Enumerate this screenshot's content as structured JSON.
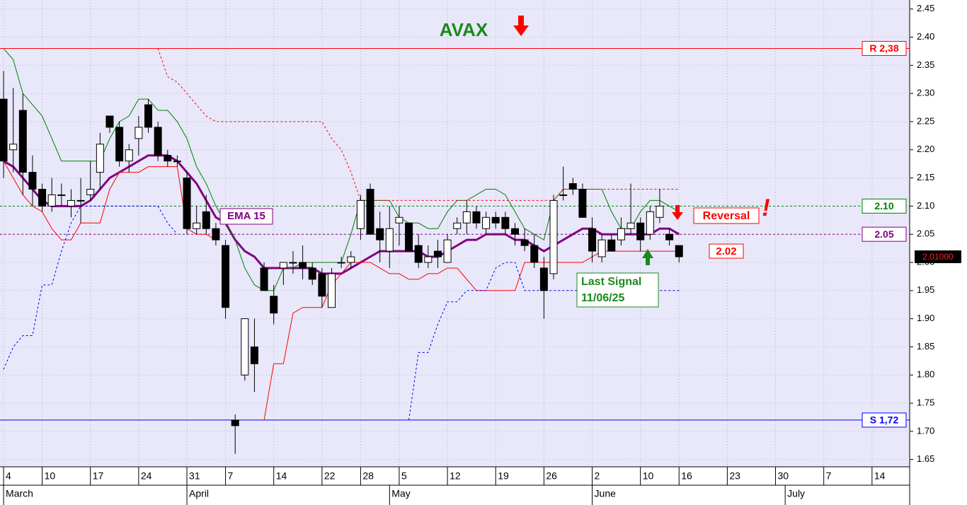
{
  "chart_data": {
    "type": "candlestick",
    "title": "AVAX",
    "x": [
      0,
      1,
      2,
      3,
      4,
      5,
      6,
      7,
      8,
      9,
      10,
      11,
      12,
      13,
      14,
      15,
      16,
      17,
      18,
      19,
      20,
      21,
      22,
      23,
      24,
      25,
      26,
      27,
      28,
      29,
      30,
      31,
      32,
      33,
      34,
      35,
      36,
      37,
      38,
      39,
      40,
      41,
      42,
      43,
      44,
      45,
      46,
      47,
      48,
      49,
      50,
      51,
      52,
      53,
      54,
      55,
      56,
      57,
      58,
      59,
      60,
      61,
      62,
      63,
      64,
      65,
      66,
      67,
      68,
      69,
      70
    ],
    "open": [
      2.29,
      2.2,
      2.27,
      2.16,
      2.13,
      2.1,
      2.12,
      2.1,
      2.11,
      2.12,
      2.16,
      2.26,
      2.24,
      2.18,
      2.22,
      2.28,
      2.24,
      2.19,
      2.18,
      2.15,
      2.06,
      2.09,
      2.06,
      2.03,
      1.72,
      1.8,
      1.85,
      1.99,
      1.94,
      1.99,
      2.0,
      2.0,
      1.99,
      1.98,
      1.92,
      2.0,
      2.0,
      2.06,
      2.13,
      2.06,
      2.02,
      2.07,
      2.07,
      2.03,
      2.0,
      2.02,
      2.0,
      2.06,
      2.07,
      2.09,
      2.06,
      2.08,
      2.08,
      2.06,
      2.04,
      2.03,
      1.99,
      1.98,
      2.12,
      2.14,
      2.13,
      2.06,
      2.01,
      2.04,
      2.04,
      2.06,
      2.07,
      2.05,
      2.08,
      2.05,
      2.03
    ],
    "high": [
      2.34,
      2.31,
      2.3,
      2.19,
      2.14,
      2.15,
      2.14,
      2.13,
      2.15,
      2.18,
      2.23,
      2.26,
      2.25,
      2.21,
      2.26,
      2.29,
      2.25,
      2.2,
      2.19,
      2.16,
      2.1,
      2.12,
      2.07,
      2.04,
      1.73,
      1.9,
      1.9,
      2.0,
      1.96,
      2.0,
      2.02,
      2.03,
      2.0,
      1.99,
      1.99,
      2.01,
      2.02,
      2.12,
      2.14,
      2.09,
      2.1,
      2.1,
      2.07,
      2.05,
      2.03,
      2.04,
      2.05,
      2.08,
      2.11,
      2.1,
      2.09,
      2.09,
      2.09,
      2.07,
      2.06,
      2.05,
      2.01,
      2.12,
      2.17,
      2.15,
      2.14,
      2.08,
      2.05,
      2.05,
      2.08,
      2.14,
      2.08,
      2.1,
      2.13,
      2.06,
      2.03
    ],
    "low": [
      2.15,
      2.16,
      2.12,
      2.1,
      2.09,
      2.09,
      2.1,
      2.08,
      2.07,
      2.11,
      2.13,
      2.23,
      2.17,
      2.16,
      2.19,
      2.23,
      2.18,
      2.17,
      2.17,
      2.05,
      2.05,
      2.05,
      2.03,
      1.9,
      1.66,
      1.79,
      1.77,
      1.95,
      1.89,
      1.96,
      1.98,
      1.97,
      1.96,
      1.92,
      1.92,
      1.99,
      1.99,
      2.04,
      2.05,
      2.0,
      1.99,
      2.03,
      2.02,
      1.99,
      1.99,
      1.99,
      2.0,
      2.05,
      2.05,
      2.06,
      2.05,
      2.06,
      2.05,
      2.03,
      2.02,
      1.99,
      1.9,
      1.97,
      2.11,
      2.12,
      2.08,
      2.0,
      2.0,
      2.02,
      2.03,
      2.05,
      2.02,
      2.04,
      2.07,
      2.03,
      2.0
    ],
    "close": [
      2.18,
      2.21,
      2.16,
      2.13,
      2.1,
      2.12,
      2.12,
      2.11,
      2.11,
      2.13,
      2.21,
      2.24,
      2.18,
      2.2,
      2.24,
      2.24,
      2.19,
      2.18,
      2.18,
      2.06,
      2.07,
      2.06,
      2.04,
      1.92,
      1.71,
      1.9,
      1.82,
      1.95,
      1.91,
      2.0,
      2.0,
      1.99,
      1.97,
      1.94,
      1.98,
      2.0,
      2.01,
      2.11,
      2.05,
      2.04,
      2.06,
      2.08,
      2.02,
      2.0,
      2.01,
      2.01,
      2.04,
      2.07,
      2.09,
      2.07,
      2.08,
      2.07,
      2.06,
      2.05,
      2.03,
      2.0,
      1.95,
      2.11,
      2.12,
      2.13,
      2.08,
      2.02,
      2.04,
      2.02,
      2.06,
      2.07,
      2.04,
      2.09,
      2.1,
      2.04,
      2.01
    ],
    "overlays": [
      {
        "name": "EMA 15",
        "color": "#800080",
        "width": 3,
        "dash": "none",
        "values": [
          2.18,
          2.17,
          2.15,
          2.13,
          2.11,
          2.1,
          2.1,
          2.1,
          2.1,
          2.11,
          2.13,
          2.15,
          2.16,
          2.17,
          2.18,
          2.19,
          2.19,
          2.19,
          2.18,
          2.16,
          2.14,
          2.11,
          2.08,
          2.07,
          2.04,
          2.02,
          2.01,
          1.99,
          1.99,
          1.99,
          1.99,
          1.99,
          1.99,
          1.98,
          1.98,
          1.98,
          1.99,
          2.0,
          2.01,
          2.02,
          2.02,
          2.02,
          2.02,
          2.02,
          2.01,
          2.01,
          2.02,
          2.03,
          2.04,
          2.04,
          2.05,
          2.05,
          2.05,
          2.04,
          2.04,
          2.03,
          2.02,
          2.03,
          2.04,
          2.05,
          2.06,
          2.06,
          2.05,
          2.05,
          2.05,
          2.05,
          2.05,
          2.05,
          2.06,
          2.06,
          2.05
        ]
      },
      {
        "color": "#008000",
        "width": 1,
        "dash": "none",
        "values": [
          2.38,
          2.36,
          2.3,
          2.28,
          2.26,
          2.22,
          2.18,
          2.18,
          2.18,
          2.18,
          2.18,
          2.22,
          2.25,
          2.26,
          2.29,
          2.29,
          2.27,
          2.27,
          2.25,
          2.22,
          2.17,
          2.14,
          2.1,
          2.07,
          2.04,
          1.99,
          1.96,
          1.95,
          1.95,
          1.99,
          1.99,
          2.0,
          2.0,
          2.0,
          2.0,
          2.0,
          2.05,
          2.11,
          2.11,
          2.11,
          2.11,
          2.08,
          2.07,
          2.07,
          2.06,
          2.06,
          2.09,
          2.11,
          2.11,
          2.12,
          2.13,
          2.13,
          2.12,
          2.09,
          2.06,
          2.05,
          2.04,
          2.11,
          2.13,
          2.13,
          2.13,
          2.13,
          2.13,
          2.09,
          2.06,
          2.06,
          2.09,
          2.11,
          2.11,
          2.1,
          2.09
        ]
      },
      {
        "color": "#ff0000",
        "width": 1,
        "dash": "none",
        "values": [
          2.18,
          2.15,
          2.12,
          2.1,
          2.09,
          2.06,
          2.04,
          2.04,
          2.07,
          2.07,
          2.07,
          2.13,
          2.16,
          2.16,
          2.16,
          2.17,
          2.17,
          2.17,
          2.17,
          2.06,
          2.05,
          2.05,
          2.04,
          null,
          null,
          null,
          null,
          1.72,
          1.82,
          1.82,
          1.91,
          1.92,
          1.92,
          1.92,
          1.96,
          1.98,
          2.0,
          2.0,
          2.0,
          1.99,
          1.98,
          1.98,
          1.97,
          1.97,
          1.98,
          1.98,
          1.99,
          1.99,
          1.97,
          1.95,
          1.95,
          1.95,
          1.95,
          1.95,
          2.0,
          2.0,
          2.0,
          2.0,
          2.0,
          2.0,
          2.0,
          2.01,
          2.02,
          2.02,
          2.02,
          2.02,
          2.02,
          2.02,
          2.02,
          2.02,
          2.02
        ]
      },
      {
        "color": "#ff0000",
        "width": 1,
        "dash": "3,3",
        "values": [
          null,
          null,
          null,
          null,
          null,
          null,
          null,
          null,
          null,
          null,
          null,
          null,
          null,
          null,
          null,
          null,
          2.38,
          2.33,
          2.32,
          2.3,
          2.28,
          2.26,
          2.25,
          2.25,
          2.25,
          2.25,
          2.25,
          2.25,
          2.25,
          2.25,
          2.25,
          2.25,
          2.25,
          2.25,
          2.22,
          2.2,
          2.16,
          2.11,
          2.11,
          2.11,
          2.11,
          2.11,
          2.11,
          2.11,
          2.11,
          2.11,
          2.11,
          2.11,
          2.11,
          2.11,
          2.11,
          2.11,
          2.11,
          2.11,
          2.11,
          2.11,
          2.11,
          2.11,
          2.13,
          2.13,
          2.13,
          2.13,
          2.13,
          2.13,
          2.13,
          2.13,
          2.13,
          2.13,
          2.13,
          2.13,
          2.13
        ]
      },
      {
        "color": "#0000ff",
        "width": 1,
        "dash": "3,3",
        "values": [
          1.81,
          1.85,
          1.87,
          1.87,
          1.96,
          1.96,
          2.02,
          2.07,
          2.1,
          2.1,
          2.1,
          2.1,
          2.1,
          2.1,
          2.1,
          2.1,
          2.1,
          2.07,
          2.05,
          null,
          null,
          null,
          null,
          null,
          null,
          null,
          null,
          null,
          null,
          null,
          null,
          null,
          null,
          null,
          null,
          null,
          null,
          null,
          null,
          null,
          null,
          null,
          1.72,
          1.84,
          1.84,
          1.89,
          1.93,
          1.93,
          1.95,
          1.95,
          1.95,
          1.99,
          2.0,
          2.0,
          1.95,
          1.95,
          1.95,
          1.95,
          1.95,
          1.95,
          1.95,
          1.95,
          1.95,
          1.95,
          1.95,
          1.95,
          1.95,
          1.95,
          1.95,
          1.95,
          1.95
        ]
      }
    ],
    "levels": [
      {
        "label": "R 2,38",
        "value": 2.38,
        "color": "#ff0000",
        "dash": "none"
      },
      {
        "label": "S 1,72",
        "value": 1.72,
        "color": "#0000ff",
        "dash": "none"
      },
      {
        "label": "2.10",
        "value": 2.1,
        "color": "#008000",
        "dash": "3,3"
      },
      {
        "label": "2.05",
        "value": 2.05,
        "color": "#800080",
        "dash": "3,3"
      }
    ],
    "last_price": {
      "value": 2.01,
      "label": "2.01000"
    },
    "annotations": {
      "reversal": "Reversal",
      "exclamation": "!",
      "last_signal": "Last Signal",
      "signal_date": "11/06/25",
      "stop": {
        "value": 2.02,
        "label": "2.02"
      }
    },
    "xlim": [
      -0.37,
      93.9
    ],
    "ylim": [
      1.637,
      2.466
    ],
    "yticks": [
      2.45,
      {
        "value": 2.4,
        "label": "2.40"
      },
      2.35,
      {
        "value": 2.3,
        "label": "2.30"
      },
      2.25,
      {
        "value": 2.2,
        "label": "2.20"
      },
      2.15,
      {
        "value": 2.1,
        "label": "2.10"
      },
      2.05,
      {
        "value": 2,
        "label": "2.00"
      },
      1.95,
      {
        "value": 1.9,
        "label": "1.90"
      },
      1.85,
      {
        "value": 1.8,
        "label": "1.80"
      },
      1.75,
      {
        "value": 1.7,
        "label": "1.70"
      },
      1.65
    ],
    "xticks": [
      {
        "value": 0,
        "label": "4"
      },
      {
        "value": 4,
        "label": "10"
      },
      {
        "value": 9,
        "label": "17"
      },
      {
        "value": 14,
        "label": "24"
      },
      {
        "value": 19,
        "label": "31"
      },
      {
        "value": 23,
        "label": "7"
      },
      {
        "value": 28,
        "label": "14"
      },
      {
        "value": 33,
        "label": "22"
      },
      {
        "value": 37,
        "label": "28"
      },
      {
        "value": 41,
        "label": "5"
      },
      {
        "value": 46,
        "label": "12"
      },
      {
        "value": 51,
        "label": "19"
      },
      {
        "value": 56,
        "label": "26"
      },
      {
        "value": 61,
        "label": "2"
      },
      {
        "value": 66,
        "label": "10"
      },
      {
        "value": 70,
        "label": "16"
      },
      {
        "value": 75,
        "label": "23"
      },
      {
        "value": 80,
        "label": "30"
      },
      {
        "value": 85,
        "label": "7"
      },
      {
        "value": 90,
        "label": "14"
      }
    ],
    "month_ticks": [
      {
        "value": 0,
        "label": "March"
      },
      {
        "value": 19,
        "label": "April"
      },
      {
        "value": 40,
        "label": "May"
      },
      {
        "value": 61,
        "label": "June"
      },
      {
        "value": 81,
        "label": "July"
      }
    ],
    "grid": true
  }
}
